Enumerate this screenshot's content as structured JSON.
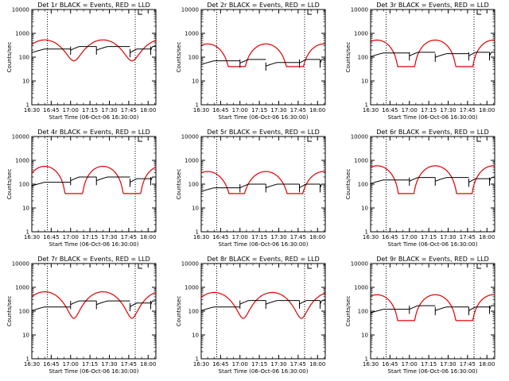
{
  "colors": {
    "events": "#000000",
    "lld": "#e00000",
    "axes": "#000000",
    "background": "#ffffff"
  },
  "shared": {
    "xlabel": "Start Time (06-Oct-06 16:30:00)",
    "ylabel": "Counts/sec",
    "x_ticks": [
      "16:30",
      "16:45",
      "17:00",
      "17:15",
      "17:30",
      "17:45",
      "18:00"
    ],
    "y_ticks": [
      "1",
      "10",
      "100",
      "1000",
      "10000"
    ],
    "vlines_minutes": [
      12,
      80
    ]
  },
  "chart_data": [
    {
      "type": "line",
      "title": "Det 1r BLACK = Events, RED = LLD",
      "xlabel": "Start Time (06-Oct-06 16:30:00)",
      "ylabel": "Counts/sec",
      "xlim": [
        0,
        96
      ],
      "ylim": [
        1,
        10000
      ],
      "yscale": "log",
      "lld": {
        "base": 300,
        "amp": 230,
        "period": 45,
        "phase": 10
      },
      "events": {
        "levels": [
          220,
          280,
          280,
          220,
          280
        ],
        "breaks": [
          30,
          50,
          76,
          92
        ]
      },
      "series": [
        {
          "name": "BLACK = Events"
        },
        {
          "name": "RED = LLD"
        }
      ]
    },
    {
      "type": "line",
      "title": "Det 2r BLACK = Events, RED = LLD",
      "xlabel": "Start Time (06-Oct-06 16:30:00)",
      "ylabel": "Counts/sec",
      "xlim": [
        0,
        96
      ],
      "ylim": [
        1,
        10000
      ],
      "yscale": "log",
      "lld": {
        "base": 160,
        "amp": 200,
        "period": 45,
        "phase": 5
      },
      "events": {
        "levels": [
          70,
          80,
          60,
          80,
          80
        ],
        "breaks": [
          30,
          50,
          76,
          92
        ]
      },
      "series": [
        {
          "name": "BLACK = Events"
        },
        {
          "name": "RED = LLD"
        }
      ]
    },
    {
      "type": "line",
      "title": "Det 3r BLACK = Events, RED = LLD",
      "xlabel": "Start Time (06-Oct-06 16:30:00)",
      "ylabel": "Counts/sec",
      "xlim": [
        0,
        96
      ],
      "ylim": [
        1,
        10000
      ],
      "yscale": "log",
      "lld": {
        "base": 220,
        "amp": 300,
        "period": 45,
        "phase": 5
      },
      "events": {
        "levels": [
          150,
          160,
          140,
          160,
          160
        ],
        "breaks": [
          30,
          50,
          76,
          92
        ]
      },
      "series": [
        {
          "name": "BLACK = Events"
        },
        {
          "name": "RED = LLD"
        }
      ]
    },
    {
      "type": "line",
      "title": "Det 4r BLACK = Events, RED = LLD",
      "xlabel": "Start Time (06-Oct-06 16:30:00)",
      "ylabel": "Counts/sec",
      "xlim": [
        0,
        96
      ],
      "ylim": [
        1,
        10000
      ],
      "yscale": "log",
      "lld": {
        "base": 230,
        "amp": 330,
        "period": 45,
        "phase": 10
      },
      "events": {
        "levels": [
          120,
          200,
          200,
          170,
          200
        ],
        "breaks": [
          30,
          50,
          76,
          92
        ]
      },
      "series": [
        {
          "name": "BLACK = Events"
        },
        {
          "name": "RED = LLD"
        }
      ]
    },
    {
      "type": "line",
      "title": "Det 5r BLACK = Events, RED = LLD",
      "xlabel": "Start Time (06-Oct-06 16:30:00)",
      "ylabel": "Counts/sec",
      "xlim": [
        0,
        96
      ],
      "ylim": [
        1,
        10000
      ],
      "yscale": "log",
      "lld": {
        "base": 160,
        "amp": 180,
        "period": 45,
        "phase": 5
      },
      "events": {
        "levels": [
          70,
          100,
          100,
          100,
          100
        ],
        "breaks": [
          30,
          50,
          76,
          92
        ]
      },
      "series": [
        {
          "name": "BLACK = Events"
        },
        {
          "name": "RED = LLD"
        }
      ]
    },
    {
      "type": "line",
      "title": "Det 6r BLACK = Events, RED = LLD",
      "xlabel": "Start Time (06-Oct-06 16:30:00)",
      "ylabel": "Counts/sec",
      "xlim": [
        0,
        96
      ],
      "ylim": [
        1,
        10000
      ],
      "yscale": "log",
      "lld": {
        "base": 260,
        "amp": 330,
        "period": 45,
        "phase": 5
      },
      "events": {
        "levels": [
          150,
          190,
          190,
          170,
          190
        ],
        "breaks": [
          30,
          50,
          76,
          92
        ]
      },
      "series": [
        {
          "name": "BLACK = Events"
        },
        {
          "name": "RED = LLD"
        }
      ]
    },
    {
      "type": "line",
      "title": "Det 7r BLACK = Events, RED = LLD",
      "xlabel": "Start Time (06-Oct-06 16:30:00)",
      "ylabel": "Counts/sec",
      "xlim": [
        0,
        96
      ],
      "ylim": [
        1,
        10000
      ],
      "yscale": "log",
      "lld": {
        "base": 350,
        "amp": 300,
        "period": 45,
        "phase": 10
      },
      "events": {
        "levels": [
          150,
          270,
          270,
          220,
          270
        ],
        "breaks": [
          30,
          50,
          76,
          92
        ]
      },
      "series": [
        {
          "name": "BLACK = Events"
        },
        {
          "name": "RED = LLD"
        }
      ]
    },
    {
      "type": "line",
      "title": "Det 8r BLACK = Events, RED = LLD",
      "xlabel": "Start Time (06-Oct-06 16:30:00)",
      "ylabel": "Counts/sec",
      "xlim": [
        0,
        96
      ],
      "ylim": [
        1,
        10000
      ],
      "yscale": "log",
      "lld": {
        "base": 330,
        "amp": 280,
        "period": 45,
        "phase": 10
      },
      "events": {
        "levels": [
          150,
          280,
          280,
          280,
          280
        ],
        "breaks": [
          30,
          50,
          76,
          92
        ]
      },
      "series": [
        {
          "name": "BLACK = Events"
        },
        {
          "name": "RED = LLD"
        }
      ]
    },
    {
      "type": "line",
      "title": "Det 9r BLACK = Events, RED = LLD",
      "xlabel": "Start Time (06-Oct-06 16:30:00)",
      "ylabel": "Counts/sec",
      "xlim": [
        0,
        96
      ],
      "ylim": [
        1,
        10000
      ],
      "yscale": "log",
      "lld": {
        "base": 210,
        "amp": 280,
        "period": 45,
        "phase": 5
      },
      "events": {
        "levels": [
          120,
          170,
          150,
          150,
          170
        ],
        "breaks": [
          30,
          50,
          76,
          92
        ]
      },
      "series": [
        {
          "name": "BLACK = Events"
        },
        {
          "name": "RED = LLD"
        }
      ]
    }
  ]
}
